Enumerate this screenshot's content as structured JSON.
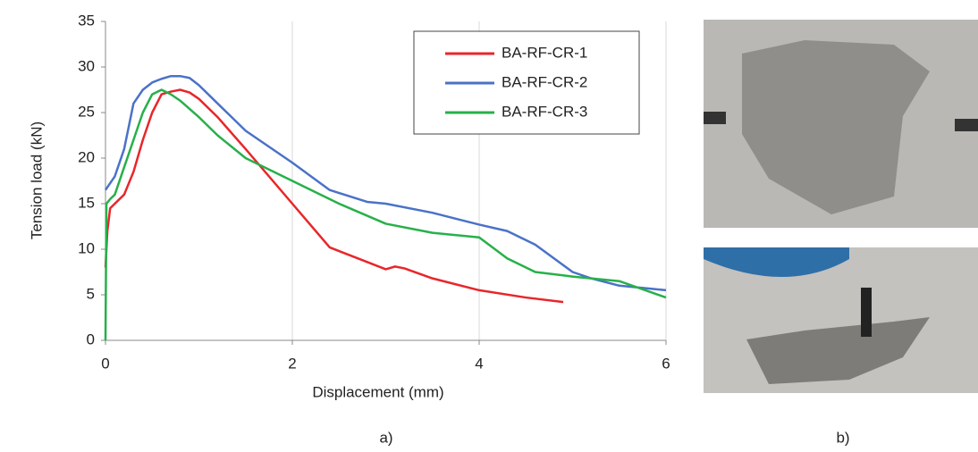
{
  "chart_data": {
    "type": "line",
    "x_label": "Displacement (mm)",
    "y_label": "Tension load (kN)",
    "xlim": [
      0,
      6
    ],
    "xticks": [
      0,
      2,
      4,
      6
    ],
    "ylim": [
      0,
      35
    ],
    "yticks": [
      0,
      5,
      10,
      15,
      20,
      25,
      30,
      35
    ],
    "grid": "x",
    "legend": "upper right",
    "series": [
      {
        "name": "BA-RF-CR-1",
        "color": "#e8262a",
        "x": [
          0,
          0.02,
          0.05,
          0.1,
          0.2,
          0.3,
          0.4,
          0.5,
          0.6,
          0.7,
          0.8,
          0.9,
          1.0,
          1.2,
          1.5,
          2.0,
          2.4,
          2.7,
          3.0,
          3.1,
          3.2,
          3.5,
          4.0,
          4.5,
          4.9
        ],
        "values": [
          8,
          12,
          14.5,
          15,
          16,
          18.5,
          22,
          25,
          27,
          27.3,
          27.5,
          27.2,
          26.5,
          24.5,
          21,
          15,
          10.2,
          9,
          7.8,
          8.1,
          7.9,
          6.8,
          5.5,
          4.7,
          4.2
        ]
      },
      {
        "name": "BA-RF-CR-2",
        "color": "#4a72c8",
        "x": [
          0,
          0.1,
          0.2,
          0.3,
          0.4,
          0.5,
          0.6,
          0.7,
          0.8,
          0.9,
          1.0,
          1.2,
          1.5,
          2.0,
          2.4,
          2.8,
          3.0,
          3.5,
          4.0,
          4.3,
          4.6,
          5.0,
          5.2,
          5.5,
          6.0
        ],
        "values": [
          16.5,
          18,
          21,
          26,
          27.5,
          28.3,
          28.7,
          29,
          29,
          28.8,
          28,
          26,
          23,
          19.5,
          16.5,
          15.2,
          15,
          14,
          12.7,
          12,
          10.5,
          7.5,
          6.8,
          6,
          5.5
        ]
      },
      {
        "name": "BA-RF-CR-3",
        "color": "#27b04a",
        "x": [
          0,
          0.01,
          0.05,
          0.1,
          0.2,
          0.3,
          0.4,
          0.5,
          0.6,
          0.7,
          0.8,
          1.0,
          1.2,
          1.5,
          2.0,
          2.5,
          3.0,
          3.5,
          4.0,
          4.3,
          4.6,
          5.0,
          5.5,
          6.0
        ],
        "values": [
          0,
          15,
          15.5,
          16,
          19,
          22,
          25,
          27,
          27.5,
          27,
          26.3,
          24.5,
          22.5,
          20,
          17.5,
          15,
          12.8,
          11.8,
          11.3,
          9,
          7.5,
          7,
          6.5,
          4.7
        ]
      }
    ]
  },
  "captions": [
    "a)",
    "b)"
  ]
}
